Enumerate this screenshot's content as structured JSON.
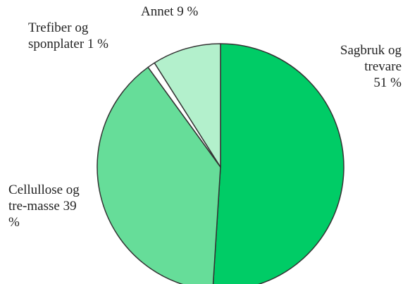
{
  "chart_data": {
    "type": "pie",
    "categories": [
      "Sagbruk og trevare",
      "Cellullose og tre-masse",
      "Trefiber og sponplater",
      "Annet"
    ],
    "values": [
      51,
      39,
      1,
      9
    ],
    "value_labels": [
      "51 %",
      "39 %",
      "1 %",
      "9 %"
    ],
    "colors": [
      "#00cc66",
      "#66dd99",
      "#ffffff",
      "#b3f0cc"
    ]
  }
}
